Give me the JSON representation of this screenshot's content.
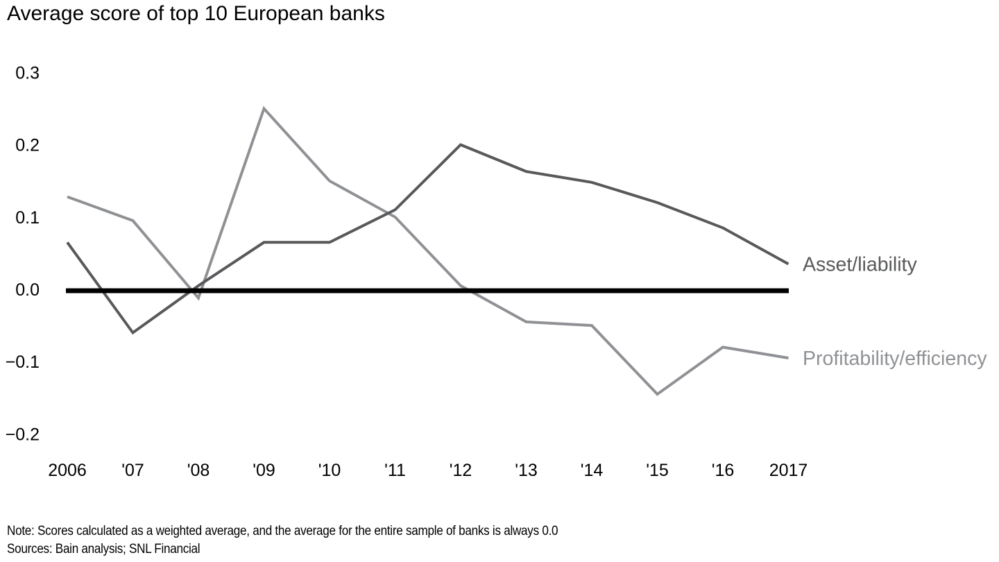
{
  "title": "Average score of top 10 European banks",
  "footer": {
    "note": "Note: Scores calculated as a weighted average, and the average for the entire sample of banks is always 0.0",
    "sources": "Sources: Bain analysis; SNL Financial"
  },
  "colors": {
    "asset_liability": "#58595b",
    "profitability_efficiency": "#8f9194",
    "zero_line": "#000000",
    "axis_text": "#000000"
  },
  "chart_data": {
    "type": "line",
    "title": "Average score of top 10 European banks",
    "x": [
      2006,
      2007,
      2008,
      2009,
      2010,
      2011,
      2012,
      2013,
      2014,
      2015,
      2016,
      2017
    ],
    "x_tick_labels": [
      "2006",
      "'07",
      "'08",
      "'09",
      "'10",
      "'11",
      "'12",
      "'13",
      "'14",
      "'15",
      "'16",
      "2017"
    ],
    "series": [
      {
        "name": "Profitability/efficiency",
        "color": "#8f9194",
        "values": [
          0.128,
          0.095,
          -0.012,
          0.25,
          0.15,
          0.1,
          0.005,
          -0.045,
          -0.05,
          -0.145,
          -0.08,
          -0.095
        ]
      },
      {
        "name": "Asset/liability",
        "color": "#58595b",
        "values": [
          0.065,
          -0.06,
          0.005,
          0.065,
          0.065,
          0.11,
          0.2,
          0.163,
          0.148,
          0.12,
          0.085,
          0.035
        ]
      }
    ],
    "ylim": [
      -0.2,
      0.3
    ],
    "yticks": [
      0.3,
      0.2,
      0.1,
      0.0,
      -0.1,
      -0.2
    ],
    "ytick_labels": [
      "0.3",
      "0.2",
      "0.1",
      "0.0",
      "−0.1",
      "−0.2"
    ],
    "zero_line": true,
    "grid": false,
    "legend_position": "labels-at-line-ends-right",
    "xlabel": "",
    "ylabel": ""
  }
}
